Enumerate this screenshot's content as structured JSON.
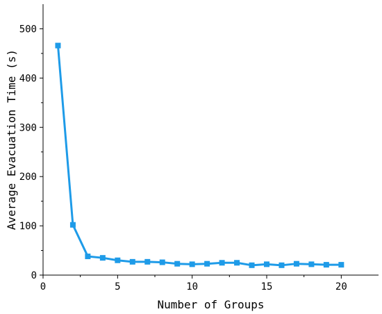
{
  "chart_data": {
    "type": "line",
    "title": "",
    "xlabel": "Number of Groups",
    "ylabel": "Average Evacuation Time (s)",
    "xlim": [
      0,
      22.5
    ],
    "ylim": [
      0,
      550
    ],
    "xticks": [
      0,
      5,
      10,
      15,
      20
    ],
    "yticks": [
      0,
      100,
      200,
      300,
      400,
      500
    ],
    "grid": false,
    "legend": "none",
    "series": [
      {
        "color": "#1e9be8",
        "marker": "square",
        "x": [
          1,
          2,
          3,
          4,
          5,
          6,
          7,
          8,
          9,
          10,
          11,
          12,
          13,
          14,
          15,
          16,
          17,
          18,
          19,
          20
        ],
        "y": [
          466,
          102,
          38,
          35,
          30,
          27,
          27,
          26,
          23,
          22,
          23,
          25,
          25,
          20,
          22,
          20,
          23,
          22,
          21,
          21
        ]
      }
    ]
  }
}
